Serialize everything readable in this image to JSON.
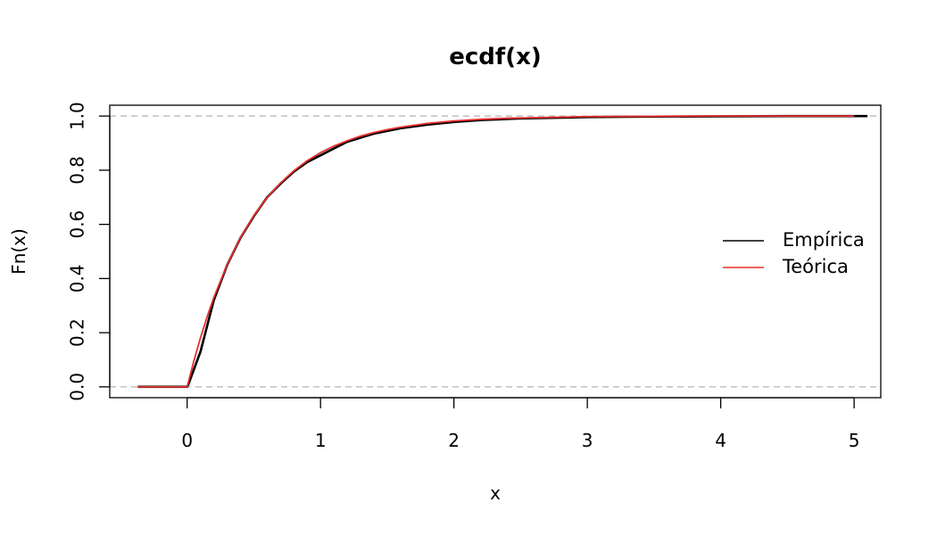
{
  "chart_data": {
    "type": "line",
    "title": "ecdf(x)",
    "xlabel": "x",
    "ylabel": "Fn(x)",
    "xlim": [
      -0.58,
      5.2
    ],
    "ylim": [
      -0.04,
      1.04
    ],
    "x_ticks": [
      0,
      1,
      2,
      3,
      4,
      5
    ],
    "x_tick_labels": [
      "0",
      "1",
      "2",
      "3",
      "4",
      "5"
    ],
    "y_ticks": [
      0.0,
      0.2,
      0.4,
      0.6,
      0.8,
      1.0
    ],
    "y_tick_labels": [
      "0.0",
      "0.2",
      "0.4",
      "0.6",
      "0.8",
      "1.0"
    ],
    "reference_lines_y": [
      0,
      1
    ],
    "grid": false,
    "legend": {
      "position": "right",
      "entries": [
        "Empírica",
        "Teórica"
      ]
    },
    "series": [
      {
        "name": "Empírica",
        "color": "#000000",
        "x": [
          -0.37,
          0.0,
          0.01,
          0.1,
          0.2,
          0.3,
          0.4,
          0.5,
          0.6,
          0.7,
          0.8,
          0.9,
          1.0,
          1.2,
          1.4,
          1.6,
          1.8,
          2.0,
          2.2,
          2.5,
          3.0,
          3.5,
          4.0,
          4.5,
          5.0,
          5.1
        ],
        "y": [
          0.0,
          0.0,
          0.01,
          0.13,
          0.32,
          0.45,
          0.55,
          0.63,
          0.7,
          0.75,
          0.795,
          0.83,
          0.855,
          0.905,
          0.935,
          0.955,
          0.968,
          0.978,
          0.985,
          0.991,
          0.996,
          0.998,
          0.999,
          1.0,
          1.0,
          1.0
        ]
      },
      {
        "name": "Teórica",
        "color": "#e8302f",
        "x": [
          -0.37,
          0.0,
          0.05,
          0.1,
          0.15,
          0.2,
          0.3,
          0.4,
          0.5,
          0.6,
          0.7,
          0.8,
          0.9,
          1.0,
          1.1,
          1.2,
          1.3,
          1.4,
          1.5,
          1.6,
          1.8,
          2.0,
          2.2,
          2.4,
          2.6,
          2.8,
          3.0,
          3.5,
          4.0,
          4.5,
          5.0
        ],
        "y": [
          0.0,
          0.0,
          0.095,
          0.181,
          0.259,
          0.33,
          0.451,
          0.551,
          0.632,
          0.699,
          0.753,
          0.798,
          0.835,
          0.865,
          0.889,
          0.909,
          0.926,
          0.939,
          0.95,
          0.959,
          0.973,
          0.982,
          0.988,
          0.992,
          0.994,
          0.996,
          0.998,
          0.999,
          1.0,
          1.0,
          1.0
        ]
      }
    ]
  }
}
